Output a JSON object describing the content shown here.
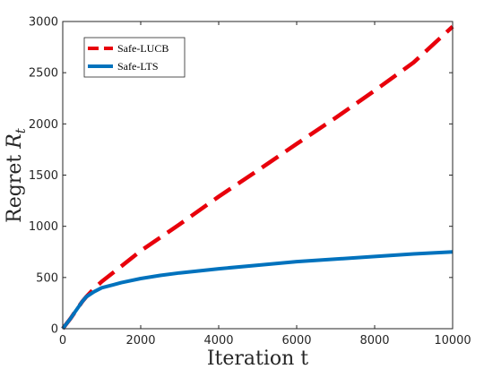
{
  "chart_data": {
    "type": "line",
    "title": "",
    "xlabel": "Iteration t",
    "ylabel_text": "Regret ",
    "ylabel_symbol": "R",
    "ylabel_subscript": "t",
    "xlim": [
      0,
      10000
    ],
    "ylim": [
      0,
      3000
    ],
    "xticks": [
      0,
      2000,
      4000,
      6000,
      8000,
      10000
    ],
    "yticks": [
      0,
      500,
      1000,
      1500,
      2000,
      2500,
      3000
    ],
    "xtick_labels": [
      "0",
      "2000",
      "4000",
      "6000",
      "8000",
      "10000"
    ],
    "ytick_labels": [
      "0",
      "500",
      "1000",
      "1500",
      "2000",
      "2500",
      "3000"
    ],
    "grid": false,
    "legend_placement": "top-left",
    "series": [
      {
        "name": "Safe-LUCB",
        "color": "#e8000b",
        "style": "dashed",
        "x": [
          0,
          100,
          200,
          300,
          400,
          500,
          600,
          800,
          1000,
          1500,
          2000,
          2500,
          3000,
          4000,
          5000,
          6000,
          7000,
          8000,
          9000,
          10000
        ],
        "y": [
          0,
          50,
          100,
          155,
          210,
          265,
          310,
          390,
          460,
          610,
          760,
          890,
          1020,
          1290,
          1545,
          1805,
          2060,
          2325,
          2600,
          2950
        ]
      },
      {
        "name": "Safe-LTS",
        "color": "#0072bd",
        "style": "solid",
        "x": [
          0,
          100,
          200,
          300,
          400,
          500,
          600,
          800,
          1000,
          1500,
          2000,
          2500,
          3000,
          4000,
          5000,
          6000,
          7000,
          8000,
          9000,
          10000
        ],
        "y": [
          0,
          50,
          100,
          155,
          210,
          265,
          310,
          360,
          400,
          450,
          490,
          520,
          545,
          585,
          620,
          655,
          680,
          705,
          730,
          750
        ]
      }
    ]
  }
}
